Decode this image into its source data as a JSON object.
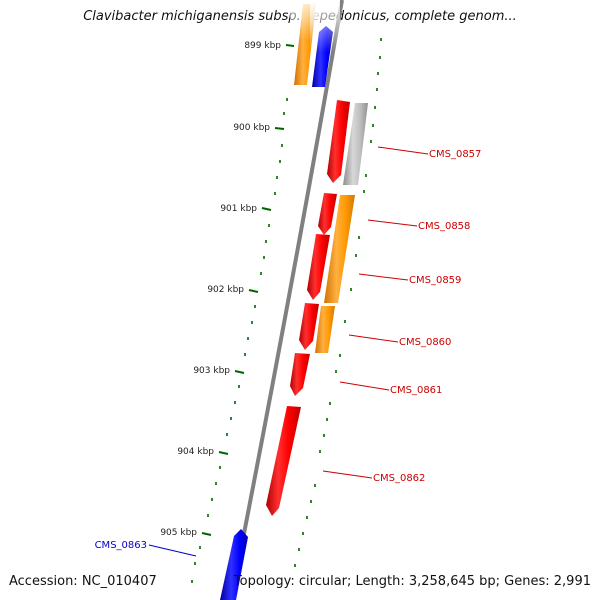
{
  "title": "Clavibacter michiganensis subsp. sepedonicus, complete genom...",
  "accession": "Accession: NC_010407",
  "summary": "Topology: circular; Length: 3,258,645 bp; Genes: 2,991",
  "colors": {
    "red": "#ff0000",
    "orange": "#ff9900",
    "blue": "#0000ff",
    "gray": "#b4b4b4",
    "tick": "#006600",
    "axis": "#808080"
  },
  "ticks": [
    {
      "label": "899 kbp"
    },
    {
      "label": "900 kbp"
    },
    {
      "label": "901 kbp"
    },
    {
      "label": "902 kbp"
    },
    {
      "label": "903 kbp"
    },
    {
      "label": "904 kbp"
    },
    {
      "label": "905 kbp"
    }
  ],
  "gene_labels": [
    {
      "text": "CMS_0857",
      "color": "#cc0000"
    },
    {
      "text": "CMS_0858",
      "color": "#cc0000"
    },
    {
      "text": "CMS_0859",
      "color": "#cc0000"
    },
    {
      "text": "CMS_0860",
      "color": "#cc0000"
    },
    {
      "text": "CMS_0861",
      "color": "#cc0000"
    },
    {
      "text": "CMS_0862",
      "color": "#cc0000"
    },
    {
      "text": "CMS_0863",
      "color": "#0000cc"
    }
  ]
}
